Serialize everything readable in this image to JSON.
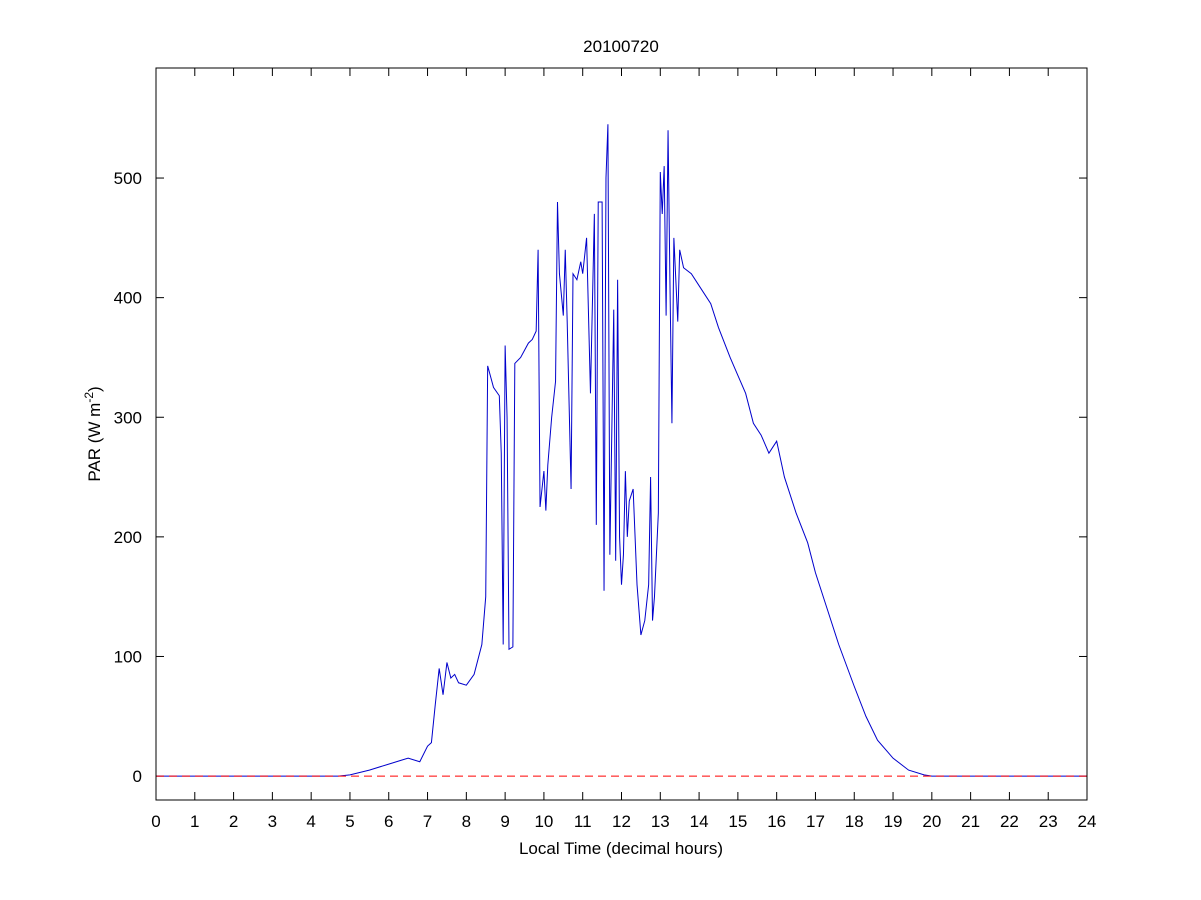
{
  "chart_data": {
    "type": "line",
    "title": "20100720",
    "xlabel": "Local Time (decimal hours)",
    "ylabel": "PAR (W m",
    "ylabel_superscript": "-2",
    "ylabel_suffix": ")",
    "xlim": [
      0,
      24
    ],
    "ylim": [
      -20,
      592
    ],
    "xticks": [
      0,
      1,
      2,
      3,
      4,
      5,
      6,
      7,
      8,
      9,
      10,
      11,
      12,
      13,
      14,
      15,
      16,
      17,
      18,
      19,
      20,
      21,
      22,
      23,
      24
    ],
    "yticks": [
      0,
      100,
      200,
      300,
      400,
      500
    ],
    "reference_line": {
      "value": 0,
      "color": "#ff0000"
    },
    "series": [
      {
        "color": "#0000cc",
        "x": [
          0,
          4.7,
          5,
          5.5,
          6,
          6.3,
          6.5,
          6.8,
          7,
          7.1,
          7.2,
          7.3,
          7.4,
          7.5,
          7.6,
          7.7,
          7.8,
          8.0,
          8.2,
          8.4,
          8.5,
          8.55,
          8.7,
          8.85,
          8.9,
          8.95,
          9.0,
          9.05,
          9.1,
          9.2,
          9.25,
          9.4,
          9.6,
          9.7,
          9.8,
          9.85,
          9.9,
          10.0,
          10.05,
          10.1,
          10.2,
          10.3,
          10.35,
          10.4,
          10.5,
          10.55,
          10.6,
          10.7,
          10.75,
          10.85,
          10.95,
          11.0,
          11.1,
          11.2,
          11.3,
          11.35,
          11.4,
          11.5,
          11.55,
          11.6,
          11.65,
          11.7,
          11.8,
          11.85,
          11.9,
          11.95,
          12.0,
          12.05,
          12.1,
          12.15,
          12.2,
          12.3,
          12.4,
          12.5,
          12.6,
          12.7,
          12.75,
          12.8,
          12.85,
          12.95,
          13.0,
          13.05,
          13.1,
          13.15,
          13.2,
          13.25,
          13.3,
          13.35,
          13.45,
          13.5,
          13.6,
          13.8,
          14.0,
          14.3,
          14.5,
          14.8,
          15.0,
          15.2,
          15.4,
          15.6,
          15.8,
          16.0,
          16.2,
          16.5,
          16.8,
          17.0,
          17.3,
          17.6,
          18.0,
          18.3,
          18.6,
          19.0,
          19.4,
          19.8,
          20.0,
          24
        ],
        "values": [
          0,
          0,
          1,
          5,
          10,
          13,
          15,
          12,
          25,
          28,
          60,
          90,
          68,
          95,
          82,
          85,
          78,
          76,
          85,
          110,
          150,
          343,
          325,
          318,
          270,
          110,
          360,
          300,
          106,
          108,
          345,
          350,
          362,
          365,
          372,
          440,
          225,
          255,
          222,
          260,
          300,
          330,
          480,
          420,
          385,
          440,
          380,
          240,
          420,
          415,
          430,
          420,
          450,
          320,
          470,
          210,
          480,
          480,
          155,
          500,
          545,
          185,
          390,
          180,
          415,
          200,
          160,
          185,
          255,
          200,
          230,
          240,
          160,
          118,
          130,
          160,
          250,
          130,
          150,
          220,
          505,
          470,
          510,
          385,
          540,
          410,
          295,
          450,
          380,
          440,
          425,
          420,
          410,
          395,
          375,
          350,
          335,
          320,
          295,
          285,
          270,
          280,
          250,
          220,
          195,
          170,
          140,
          110,
          75,
          50,
          30,
          15,
          5,
          1,
          0,
          0
        ]
      }
    ]
  }
}
